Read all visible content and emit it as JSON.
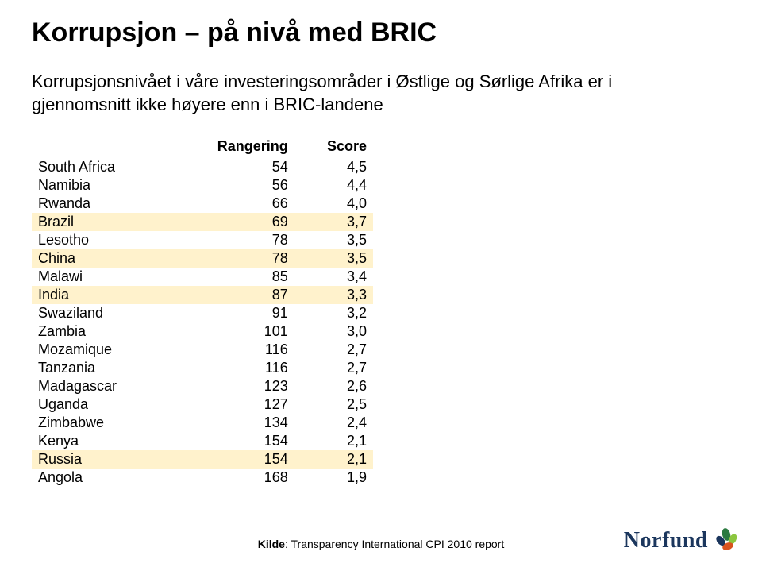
{
  "title": "Korrupsjon – på nivå med BRIC",
  "subtitle": "Korrupsjonsnivået i våre investeringsområder i Østlige og Sørlige Afrika er i gjennomsnitt ikke høyere enn i BRIC-landene",
  "table": {
    "headers": {
      "country": "",
      "rank": "Rangering",
      "score": "Score"
    },
    "highlight_color": "#fff2cc",
    "rows": [
      {
        "country": "South Africa",
        "rank": "54",
        "score": "4,5",
        "hl": false
      },
      {
        "country": "Namibia",
        "rank": "56",
        "score": "4,4",
        "hl": false
      },
      {
        "country": "Rwanda",
        "rank": "66",
        "score": "4,0",
        "hl": false
      },
      {
        "country": "Brazil",
        "rank": "69",
        "score": "3,7",
        "hl": true
      },
      {
        "country": "Lesotho",
        "rank": "78",
        "score": "3,5",
        "hl": false
      },
      {
        "country": "China",
        "rank": "78",
        "score": "3,5",
        "hl": true
      },
      {
        "country": "Malawi",
        "rank": "85",
        "score": "3,4",
        "hl": false
      },
      {
        "country": "India",
        "rank": "87",
        "score": "3,3",
        "hl": true
      },
      {
        "country": "Swaziland",
        "rank": "91",
        "score": "3,2",
        "hl": false
      },
      {
        "country": "Zambia",
        "rank": "101",
        "score": "3,0",
        "hl": false
      },
      {
        "country": "Mozamique",
        "rank": "116",
        "score": "2,7",
        "hl": false
      },
      {
        "country": "Tanzania",
        "rank": "116",
        "score": "2,7",
        "hl": false
      },
      {
        "country": "Madagascar",
        "rank": "123",
        "score": "2,6",
        "hl": false
      },
      {
        "country": "Uganda",
        "rank": "127",
        "score": "2,5",
        "hl": false
      },
      {
        "country": "Zimbabwe",
        "rank": "134",
        "score": "2,4",
        "hl": false
      },
      {
        "country": "Kenya",
        "rank": "154",
        "score": "2,1",
        "hl": false
      },
      {
        "country": "Russia",
        "rank": "154",
        "score": "2,1",
        "hl": true
      },
      {
        "country": "Angola",
        "rank": "168",
        "score": "1,9",
        "hl": false
      }
    ]
  },
  "source": {
    "label": "Kilde",
    "text": ": Transparency International CPI 2010 report"
  },
  "logo": {
    "text": "Norfund",
    "text_color": "#1b365d",
    "leaf_colors": [
      "#2a7a3f",
      "#8cc63f",
      "#1b365d",
      "#d9531e"
    ]
  }
}
